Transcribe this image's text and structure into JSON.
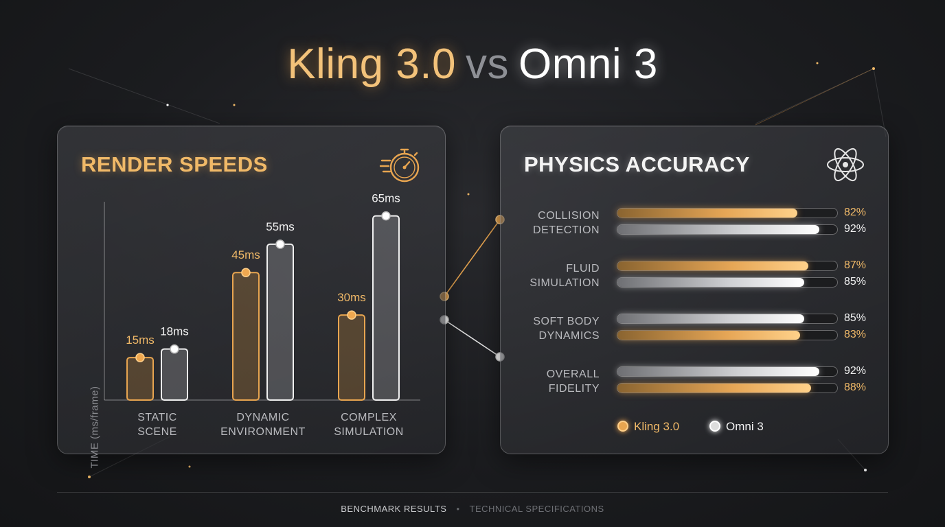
{
  "title": {
    "left": "Kling 3.0",
    "vs": "vs",
    "right": "Omni 3"
  },
  "colors": {
    "kling": "#e8a550",
    "omni": "#e6e6e6",
    "background": "#1b1c1f"
  },
  "render_panel": {
    "title": "RENDER SPEEDS",
    "icon": "stopwatch-icon"
  },
  "physics_panel": {
    "title": "PHYSICS ACCURACY",
    "icon": "atom-icon"
  },
  "chart_data": [
    {
      "type": "bar",
      "title": "RENDER SPEEDS",
      "xlabel": "",
      "ylabel": "TIME (ms/frame)",
      "categories": [
        [
          "STATIC",
          "SCENE"
        ],
        [
          "DYNAMIC",
          "ENVIRONMENT"
        ],
        [
          "COMPLEX",
          "SIMULATION"
        ]
      ],
      "series": [
        {
          "name": "Kling 3.0",
          "values": [
            15,
            45,
            30
          ],
          "labels": [
            "15ms",
            "45ms",
            "30ms"
          ],
          "color": "#e8a550"
        },
        {
          "name": "Omni 3",
          "values": [
            18,
            55,
            65
          ],
          "labels": [
            "18ms",
            "55ms",
            "65ms"
          ],
          "color": "#e6e6e6"
        }
      ],
      "ylim": [
        0,
        70
      ],
      "grid": false,
      "legend": "none"
    },
    {
      "type": "bar",
      "orientation": "horizontal",
      "title": "PHYSICS ACCURACY",
      "metrics": [
        {
          "label": [
            "COLLISION",
            "DETECTION"
          ],
          "rows": [
            {
              "series": "Kling 3.0",
              "value": 82,
              "text": "82%"
            },
            {
              "series": "Omni 3",
              "value": 92,
              "text": "92%"
            }
          ]
        },
        {
          "label": [
            "FLUID",
            "SIMULATION"
          ],
          "rows": [
            {
              "series": "Kling 3.0",
              "value": 87,
              "text": "87%"
            },
            {
              "series": "Omni 3",
              "value": 85,
              "text": "85%"
            }
          ]
        },
        {
          "label": [
            "SOFT BODY",
            "DYNAMICS"
          ],
          "rows": [
            {
              "series": "Omni 3",
              "value": 85,
              "text": "85%"
            },
            {
              "series": "Kling 3.0",
              "value": 83,
              "text": "83%"
            }
          ]
        },
        {
          "label": [
            "OVERALL",
            "FIDELITY"
          ],
          "rows": [
            {
              "series": "Omni 3",
              "value": 92,
              "text": "92%"
            },
            {
              "series": "Kling 3.0",
              "value": 88,
              "text": "88%"
            }
          ]
        }
      ],
      "xlim": [
        0,
        100
      ],
      "legend": "bottom",
      "legend_items": [
        "Kling 3.0",
        "Omni 3"
      ]
    }
  ],
  "footer": {
    "left": "BENCHMARK RESULTS",
    "separator": "•",
    "right": "TECHNICAL SPECIFICATIONS"
  }
}
